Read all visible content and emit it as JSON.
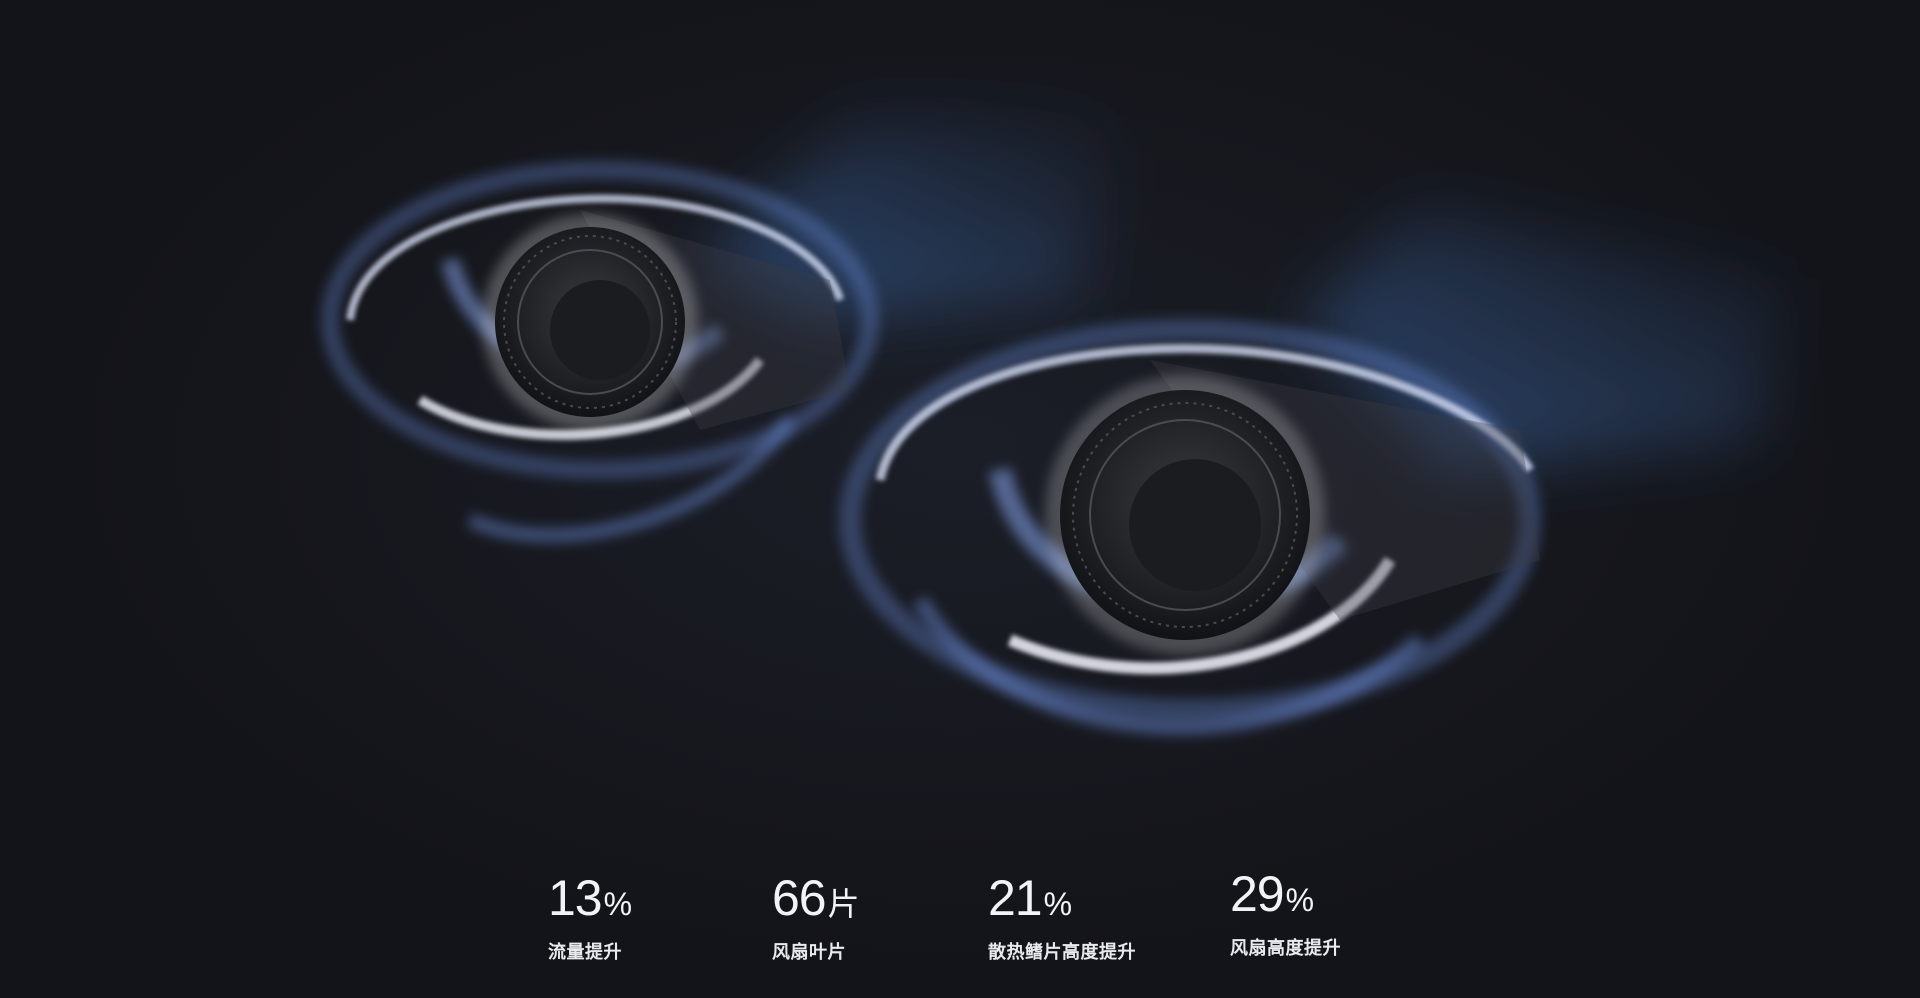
{
  "header": {
    "title": ""
  },
  "stats": [
    {
      "value": "13",
      "unit": "%",
      "label": "流量提升"
    },
    {
      "value": "66",
      "unit": "片",
      "label": "风扇叶片"
    },
    {
      "value": "21",
      "unit": "%",
      "label": "散热鳍片高度提升"
    },
    {
      "value": "29",
      "unit": "%",
      "label": "风扇高度提升"
    }
  ],
  "colors": {
    "background": "#16171d",
    "glow_blue": "#5b7fd6",
    "glow_white": "#e8eeff",
    "fan_dark": "#2a2b30"
  },
  "icons": {
    "fan_left": "cooling-fan-icon",
    "fan_right": "cooling-fan-icon"
  }
}
